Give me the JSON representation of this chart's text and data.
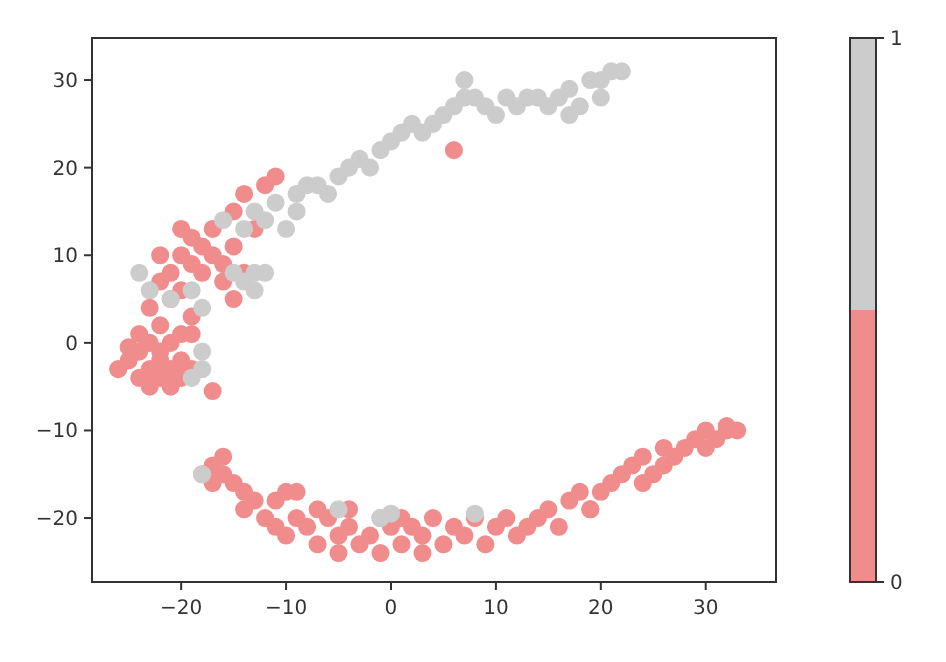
{
  "chart_data": {
    "type": "scatter",
    "marker": "circle",
    "xlim": [
      -28.5,
      36.7
    ],
    "ylim": [
      -27.3,
      34.8
    ],
    "xticks": [
      -20,
      -10,
      0,
      10,
      20,
      30
    ],
    "yticks": [
      -20,
      -10,
      0,
      10,
      20,
      30
    ],
    "clim": [
      0,
      1
    ],
    "cticks": [
      0,
      1
    ],
    "series": [
      {
        "color": "#f18c8d",
        "x": [
          -25,
          -26,
          -24,
          -23,
          -22,
          -21,
          -22,
          -23,
          -24,
          -22,
          -21,
          -20,
          -20,
          -19,
          -17,
          -24,
          -25,
          -21,
          -23,
          -20,
          -23,
          -21,
          -22,
          -21,
          -20,
          -19,
          -22,
          -20,
          -19,
          -18,
          -17,
          -16,
          -15,
          -14,
          -18,
          -19,
          -17,
          -20,
          -16,
          -15,
          -15,
          -14,
          -12,
          -11,
          -13,
          6,
          -19,
          -22,
          -17,
          -16,
          -18,
          -16,
          -15,
          -17,
          -14,
          -13,
          -14,
          -12,
          -11,
          -10,
          -9,
          -11,
          -10,
          -8,
          -9,
          -7,
          -6,
          -5,
          -5,
          -4,
          -3,
          -2,
          -1,
          0,
          1,
          1,
          2,
          3,
          4,
          5,
          6,
          7,
          8,
          9,
          10,
          11,
          12,
          13,
          14,
          15,
          16,
          17,
          18,
          19,
          20,
          21,
          22,
          23,
          24,
          24,
          25,
          26,
          26,
          27,
          28,
          29,
          30,
          30,
          31,
          32,
          33,
          32,
          -4,
          -7,
          19,
          3,
          -1
        ],
        "values": [
          -2,
          -3,
          -4,
          -5,
          -4,
          -5,
          -2,
          0,
          1,
          2,
          0,
          -2,
          1,
          -3,
          -5.5,
          -1,
          -0.5,
          -3,
          -3,
          -4,
          4,
          5,
          7,
          8,
          6,
          3,
          10,
          10,
          12,
          11,
          10,
          9,
          11,
          8,
          8,
          9,
          13,
          13,
          7,
          5,
          15,
          17,
          18,
          19,
          13,
          22,
          1,
          -1,
          -14,
          -13,
          -15,
          -15,
          -16,
          -16,
          -17,
          -18,
          -19,
          -20,
          -18,
          -17,
          -17,
          -21,
          -22,
          -21,
          -20,
          -23,
          -20,
          -22,
          -24,
          -21,
          -23,
          -22,
          -20,
          -21,
          -23,
          -20,
          -21,
          -22,
          -20,
          -23,
          -21,
          -22,
          -20,
          -23,
          -21,
          -20,
          -22,
          -21,
          -20,
          -19,
          -21,
          -18,
          -17,
          -19,
          -17,
          -16,
          -15,
          -14,
          -16,
          -13,
          -15,
          -14,
          -12,
          -13,
          -12,
          -11,
          -12,
          -10,
          -11,
          -10,
          -10,
          -9.5,
          -19,
          -19,
          -19,
          -24,
          -24
        ]
      },
      {
        "color": "#cccccc",
        "x": [
          -24,
          -23,
          -21,
          -19,
          -18,
          -18,
          -18,
          -19,
          -13,
          -13,
          -14,
          -12,
          -15,
          -16,
          -14,
          -13,
          -12,
          -10,
          -11,
          -9,
          -8,
          -7,
          -6,
          -5,
          -4,
          -3,
          -2,
          -1,
          0,
          1,
          2,
          3,
          4,
          5,
          6,
          7,
          7,
          8,
          9,
          10,
          11,
          12,
          13,
          14,
          15,
          16,
          17,
          18,
          19,
          20,
          20,
          21,
          22,
          17,
          -9,
          -5,
          -1,
          0,
          8,
          -18
        ],
        "values": [
          8,
          6,
          5,
          6,
          4,
          -1,
          -3,
          -4,
          6,
          8,
          7,
          8,
          8,
          14,
          13,
          15,
          14,
          13,
          16,
          17,
          18,
          18,
          17,
          19,
          20,
          21,
          20,
          22,
          23,
          24,
          25,
          24,
          25,
          26,
          27,
          30,
          28,
          28,
          27,
          26,
          28,
          27,
          28,
          28,
          27,
          28,
          29,
          27,
          30,
          30,
          28,
          31,
          31,
          26,
          15,
          -19,
          -20,
          -19.5,
          -19.5,
          -15
        ]
      }
    ]
  }
}
